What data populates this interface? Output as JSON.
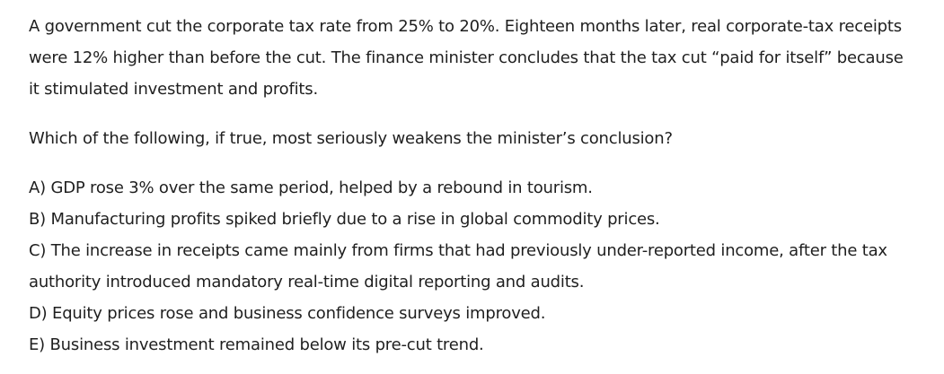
{
  "question_block": {
    "stimulus": "A government cut the corporate tax rate from 25% to 20%. Eighteen months later, real corporate-tax receipts were 12% higher than before the cut. The finance minister concludes that the tax cut “paid for itself” because it stimulated investment and profits.",
    "question": "Which of the following, if true, most seriously weakens the minister’s conclusion?",
    "options": [
      {
        "label": "A)",
        "text": "GDP rose 3% over the same period, helped by a rebound in tourism."
      },
      {
        "label": "B)",
        "text": "Manufacturing profits spiked briefly due to a rise in global commodity prices."
      },
      {
        "label": "C)",
        "text": "The increase in receipts came mainly from firms that had previously under-reported income, after the tax authority introduced mandatory real-time digital reporting and audits."
      },
      {
        "label": "D)",
        "text": "Equity prices rose and business confidence surveys improved."
      },
      {
        "label": "E)",
        "text": "Business investment remained below its pre-cut trend."
      }
    ]
  }
}
